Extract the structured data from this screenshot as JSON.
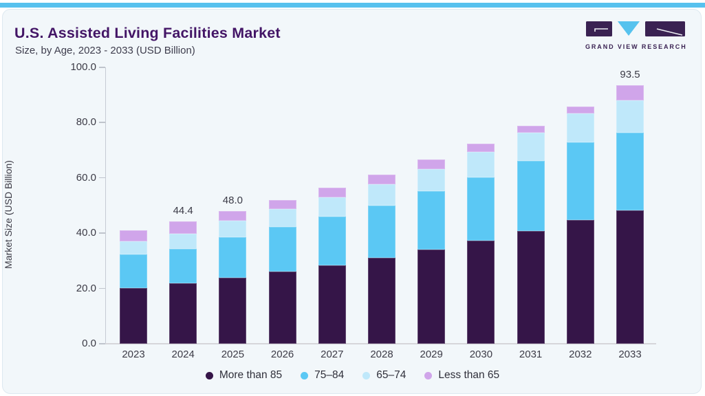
{
  "header": {
    "title": "U.S. Assisted Living Facilities Market",
    "subtitle": "Size, by Age, 2023 - 2033 (USD Billion)",
    "brand": "GRAND VIEW RESEARCH"
  },
  "colors": {
    "accent_strip": "#57C1EE",
    "card_bg": "#F2F7FA",
    "title": "#431566",
    "more_than_85": "#351548",
    "age_75_84": "#5BC8F4",
    "age_65_74": "#BFE8FA",
    "less_than_65": "#D0A5EA"
  },
  "chart_data": {
    "type": "bar",
    "stacked": true,
    "title": "U.S. Assisted Living Facilities Market Size, by Age, 2023 - 2033 (USD Billion)",
    "ylabel": "Market Size (USD Billion)",
    "ylim": [
      0,
      100
    ],
    "ytick_values": [
      0,
      20,
      40,
      60,
      80,
      100
    ],
    "ytick_labels": [
      "0.0",
      "20.0",
      "40.0",
      "60.0",
      "80.0",
      "100.0"
    ],
    "grid": false,
    "legend_position": "bottom",
    "categories": [
      "2023",
      "2024",
      "2025",
      "2026",
      "2027",
      "2028",
      "2029",
      "2030",
      "2031",
      "2032",
      "2033"
    ],
    "series": [
      {
        "name": "More than 85",
        "color": "#351548",
        "values": [
          20.2,
          22.0,
          23.9,
          26.1,
          28.3,
          31.0,
          34.0,
          37.2,
          40.7,
          44.7,
          48.3
        ]
      },
      {
        "name": "75–84",
        "color": "#5BC8F4",
        "values": [
          12.1,
          12.4,
          14.7,
          16.2,
          17.6,
          19.1,
          21.1,
          23.1,
          25.4,
          28.1,
          28.0
        ]
      },
      {
        "name": "65–74",
        "color": "#BFE8FA",
        "values": [
          4.8,
          5.3,
          5.9,
          6.4,
          7.0,
          7.7,
          8.2,
          9.2,
          10.3,
          10.6,
          11.8
        ]
      },
      {
        "name": "Less than 65",
        "color": "#D0A5EA",
        "values": [
          3.9,
          4.7,
          3.5,
          3.3,
          3.5,
          3.3,
          3.3,
          2.8,
          2.4,
          2.3,
          5.4
        ]
      }
    ],
    "totals": [
      41.0,
      44.4,
      48.0,
      52.0,
      56.4,
      61.1,
      66.6,
      72.3,
      78.8,
      85.7,
      93.5
    ],
    "data_labels": {
      "2024": "44.4",
      "2025": "48.0",
      "2033": "93.5"
    }
  }
}
